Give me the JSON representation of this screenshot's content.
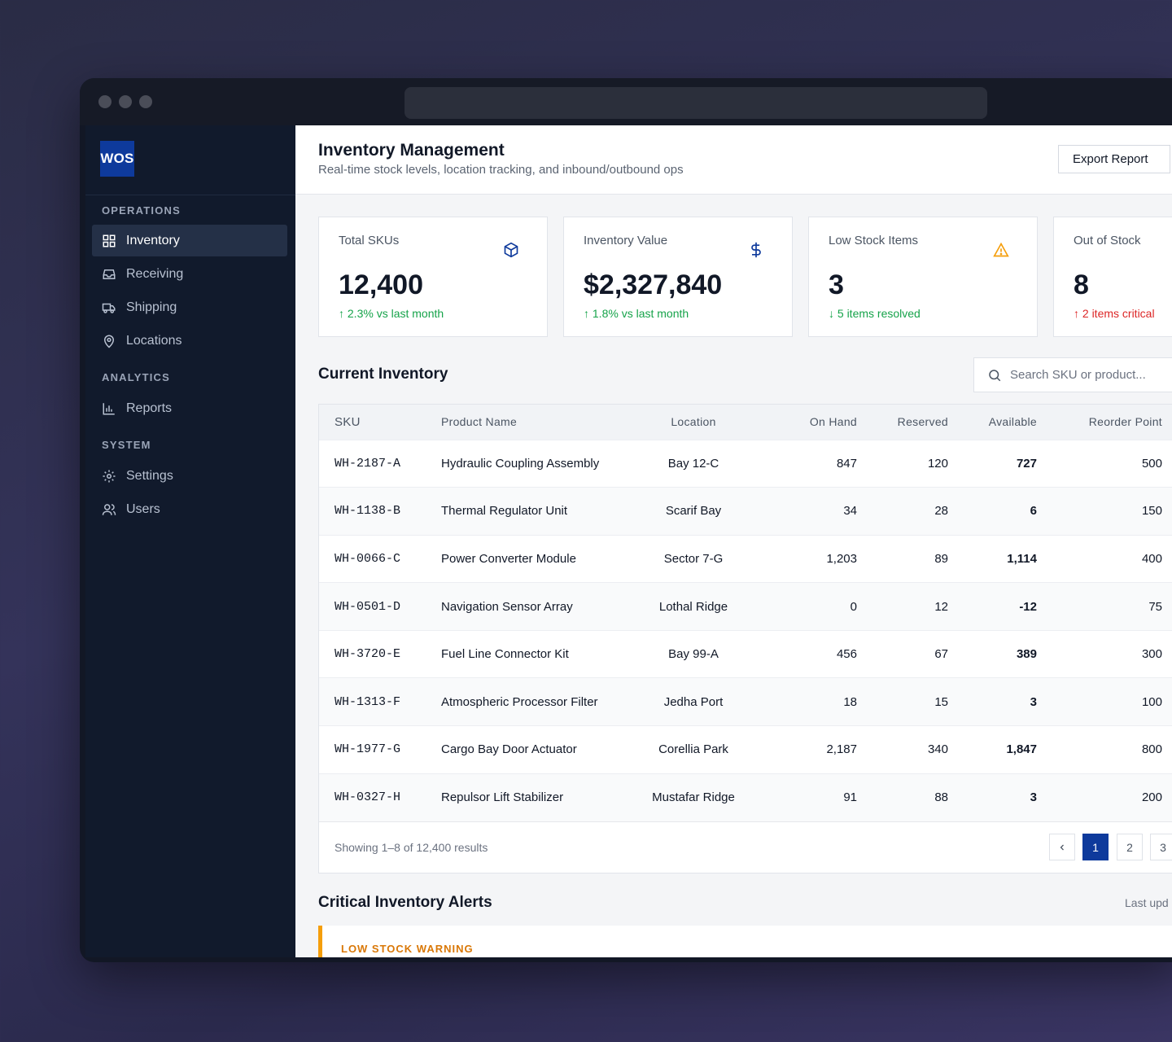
{
  "brand": {
    "logo": "WOS"
  },
  "sidebar": {
    "sections": [
      {
        "title": "OPERATIONS",
        "items": [
          {
            "label": "Inventory",
            "icon": "grid-icon",
            "active": true
          },
          {
            "label": "Receiving",
            "icon": "inbox-icon"
          },
          {
            "label": "Shipping",
            "icon": "truck-icon"
          },
          {
            "label": "Locations",
            "icon": "map-pin-icon"
          }
        ]
      },
      {
        "title": "ANALYTICS",
        "items": [
          {
            "label": "Reports",
            "icon": "bar-chart-icon"
          }
        ]
      },
      {
        "title": "SYSTEM",
        "items": [
          {
            "label": "Settings",
            "icon": "gear-icon"
          },
          {
            "label": "Users",
            "icon": "users-icon"
          }
        ]
      }
    ]
  },
  "header": {
    "title": "Inventory Management",
    "subtitle": "Real-time stock levels, location tracking, and inbound/outbound ops",
    "export_label": "Export Report"
  },
  "stats": [
    {
      "label": "Total SKUs",
      "value": "12,400",
      "trend": "↑ 2.3% vs last month",
      "trend_color": "#16a34a",
      "icon": "box-icon"
    },
    {
      "label": "Inventory Value",
      "value": "$2,327,840",
      "trend": "↑ 1.8% vs last month",
      "trend_color": "#16a34a",
      "icon": "dollar-icon"
    },
    {
      "label": "Low Stock Items",
      "value": "3",
      "trend": "↓ 5 items resolved",
      "trend_color": "#16a34a",
      "icon": "warning-icon"
    },
    {
      "label": "Out of Stock",
      "value": "8",
      "trend": "↑ 2 items critical",
      "trend_color": "#dc2626",
      "icon": "x-circle-icon"
    }
  ],
  "inventory": {
    "title": "Current Inventory",
    "search_placeholder": "Search SKU or product...",
    "columns": [
      "SKU",
      "Product Name",
      "Location",
      "On Hand",
      "Reserved",
      "Available",
      "Reorder Point"
    ],
    "rows": [
      [
        "WH-2187-A",
        "Hydraulic Coupling Assembly",
        "Bay 12-C",
        "847",
        "120",
        "727",
        "500"
      ],
      [
        "WH-1138-B",
        "Thermal Regulator Unit",
        "Scarif Bay",
        "34",
        "28",
        "6",
        "150"
      ],
      [
        "WH-0066-C",
        "Power Converter Module",
        "Sector 7-G",
        "1,203",
        "89",
        "1,114",
        "400"
      ],
      [
        "WH-0501-D",
        "Navigation Sensor Array",
        "Lothal Ridge",
        "0",
        "12",
        "-12",
        "75"
      ],
      [
        "WH-3720-E",
        "Fuel Line Connector Kit",
        "Bay 99-A",
        "456",
        "67",
        "389",
        "300"
      ],
      [
        "WH-1313-F",
        "Atmospheric Processor Filter",
        "Jedha Port",
        "18",
        "15",
        "3",
        "100"
      ],
      [
        "WH-1977-G",
        "Cargo Bay Door Actuator",
        "Corellia Park",
        "2,187",
        "340",
        "1,847",
        "800"
      ],
      [
        "WH-0327-H",
        "Repulsor Lift Stabilizer",
        "Mustafar Ridge",
        "91",
        "88",
        "3",
        "200"
      ]
    ],
    "results_text": "Showing 1–8 of 12,400 results",
    "pages": [
      "1",
      "2",
      "3"
    ],
    "current_page": "1"
  },
  "alerts": {
    "title": "Critical Inventory Alerts",
    "updated": "Last upd",
    "first_label": "LOW STOCK WARNING"
  },
  "colors": {
    "accent": "#0e3a9c",
    "sidebar_bg": "#111a2c",
    "warning": "#f59e0b",
    "success": "#16a34a",
    "danger": "#dc2626"
  }
}
